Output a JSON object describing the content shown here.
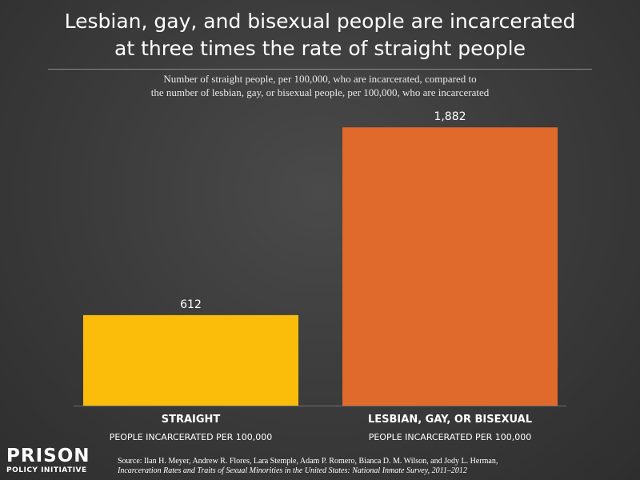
{
  "title_line1": "Lesbian, gay, and bisexual people are incarcerated",
  "title_line2": "at three times the rate of straight people",
  "subtitle_line1": "Number of straight people, per 100,000, who are incarcerated, compared to",
  "subtitle_line2": "the number of lesbian, gay, or bisexual people, per 100,000, who are incarcerated",
  "logo_top": "PRISON",
  "logo_bottom": "POLICY INITIATIVE",
  "source_line1": "Source: Ilan H. Meyer, Andrew R. Flores, Lara Stemple, Adam P. Romero, Bianca D. M. Wilson, and Jody L. Herman,",
  "source_line2": "Incarceration Rates and Traits of Sexual Minorities in the United States: National Inmate Survey, 2011–2012",
  "chart_data": {
    "type": "bar",
    "title": "Lesbian, gay, and bisexual people are incarcerated at three times the rate of straight people",
    "subtitle": "Number of straight people, per 100,000, who are incarcerated, compared to the number of lesbian, gay, or bisexual people, per 100,000, who are incarcerated",
    "categories": [
      "STRAIGHT",
      "LESBIAN, GAY, OR BISEXUAL"
    ],
    "category_sublabels": [
      "PEOPLE INCARCERATED PER 100,000",
      "PEOPLE INCARCERATED PER 100,000"
    ],
    "values": [
      612,
      1882
    ],
    "value_labels": [
      "612",
      "1,882"
    ],
    "colors": [
      "#fbbc0a",
      "#e06a2c"
    ],
    "ylim": [
      0,
      2000
    ],
    "grid": false,
    "legend": "none"
  }
}
